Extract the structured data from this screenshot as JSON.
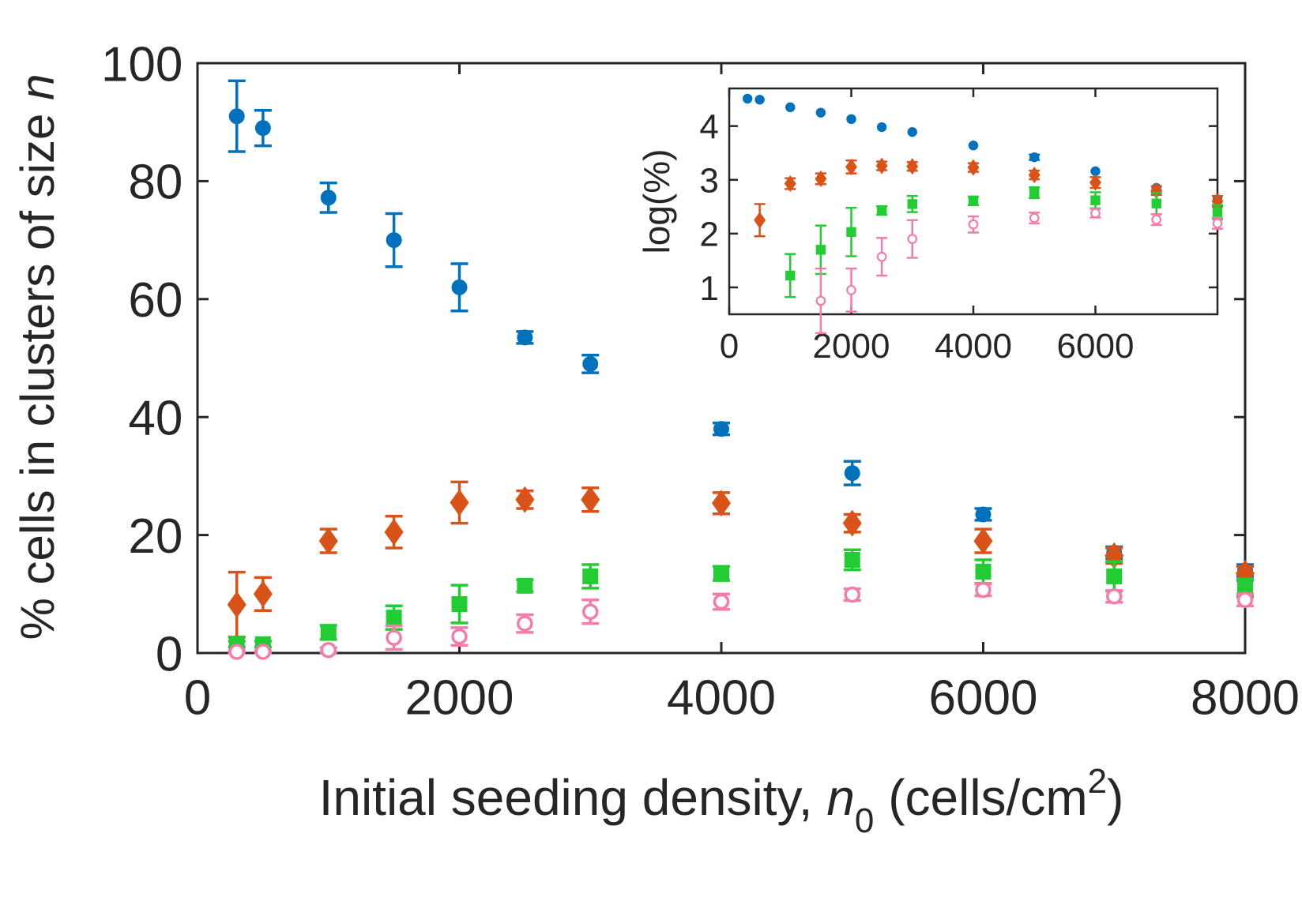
{
  "chart_data": [
    {
      "type": "scatter",
      "role": "main",
      "xlabel": {
        "text": "Initial seeding density, ",
        "var": "n",
        "sub": "0",
        "unit_open": " (cells/cm",
        "sup": "2",
        "unit_close": ")"
      },
      "ylabel": {
        "text": "% cells in clusters of size ",
        "var": "n"
      },
      "xlim": [
        0,
        8000
      ],
      "ylim": [
        0,
        100
      ],
      "xticks": [
        0,
        2000,
        4000,
        6000,
        8000
      ],
      "yticks": [
        0,
        20,
        40,
        60,
        80,
        100
      ],
      "grid": false,
      "series": [
        {
          "name": "blue-circles",
          "marker": "circle-filled",
          "color": "#0072BD",
          "x": [
            300,
            500,
            1000,
            1500,
            2000,
            2500,
            3000,
            4000,
            5000,
            6000,
            7000,
            8000
          ],
          "y": [
            91,
            89,
            77.2,
            70,
            62,
            53.5,
            49,
            38,
            30.5,
            23.5,
            17,
            14
          ],
          "err": [
            6,
            3,
            2.5,
            4.5,
            4,
            1,
            1.5,
            1,
            2,
            1,
            1,
            1
          ]
        },
        {
          "name": "orange-diamonds",
          "marker": "diamond-filled",
          "color": "#D95319",
          "x": [
            300,
            500,
            1000,
            1500,
            2000,
            2500,
            3000,
            4000,
            5000,
            6000,
            7000,
            8000
          ],
          "y": [
            8.2,
            10,
            19,
            20.5,
            25.5,
            26,
            26,
            25.4,
            22,
            19,
            16.5,
            13.5
          ],
          "err": [
            5.5,
            2.8,
            2,
            2.7,
            3.5,
            1.5,
            2,
            1.8,
            1.5,
            2,
            1.3,
            1.2
          ]
        },
        {
          "name": "green-squares",
          "marker": "square-filled",
          "color": "#22CC33",
          "x": [
            300,
            500,
            1000,
            1500,
            2000,
            2500,
            3000,
            4000,
            5000,
            6000,
            7000,
            8000
          ],
          "y": [
            1.5,
            1.5,
            3.5,
            6,
            8.3,
            11.4,
            13,
            13.5,
            15.8,
            13.8,
            13,
            11
          ],
          "err": [
            0.5,
            0.5,
            1.2,
            2,
            3.2,
            1,
            2,
            1.2,
            1.7,
            2,
            2.5,
            1.5
          ]
        },
        {
          "name": "pink-circles",
          "marker": "circle-open",
          "color": "#F27DAA",
          "x": [
            300,
            500,
            1000,
            1500,
            2000,
            2500,
            3000,
            4000,
            5000,
            6000,
            7000,
            8000
          ],
          "y": [
            0.2,
            0.2,
            0.5,
            2.6,
            2.8,
            5,
            7,
            8.7,
            9.9,
            10.7,
            9.6,
            9
          ],
          "err": [
            0.2,
            0.2,
            0.4,
            2,
            1.5,
            1.5,
            2,
            1.3,
            1,
            1,
            1,
            1
          ]
        }
      ]
    },
    {
      "type": "scatter",
      "role": "inset",
      "xlabel": "",
      "ylabel": "log(%)",
      "xlim": [
        0,
        8000
      ],
      "ylim": [
        0.5,
        4.7
      ],
      "xticks": [
        0,
        2000,
        4000,
        6000
      ],
      "yticks": [
        1,
        2,
        3,
        4
      ],
      "grid": false,
      "series": [
        {
          "name": "blue-circles",
          "marker": "circle-filled",
          "color": "#0072BD",
          "x": [
            300,
            500,
            1000,
            1500,
            2000,
            2500,
            3000,
            4000,
            5000,
            6000,
            7000,
            8000
          ],
          "y": [
            4.51,
            4.49,
            4.35,
            4.25,
            4.13,
            3.98,
            3.89,
            3.64,
            3.42,
            3.16,
            2.85,
            2.64
          ],
          "err": [
            0,
            0,
            0,
            0,
            0,
            0,
            0,
            0,
            0.05,
            0,
            0,
            0
          ]
        },
        {
          "name": "orange-diamonds",
          "marker": "diamond-filled",
          "color": "#D95319",
          "x": [
            500,
            1000,
            1500,
            2000,
            2500,
            3000,
            4000,
            5000,
            6000,
            7000,
            8000
          ],
          "y": [
            2.25,
            2.93,
            3.02,
            3.24,
            3.26,
            3.25,
            3.23,
            3.09,
            2.95,
            2.8,
            2.6
          ],
          "err": [
            0.3,
            0.1,
            0.1,
            0.12,
            0.08,
            0.08,
            0.08,
            0.08,
            0.1,
            0.08,
            0.1
          ]
        },
        {
          "name": "green-squares",
          "marker": "square-filled",
          "color": "#22CC33",
          "x": [
            1000,
            1500,
            2000,
            2500,
            3000,
            4000,
            5000,
            6000,
            7000,
            8000
          ],
          "y": [
            1.22,
            1.7,
            2.03,
            2.43,
            2.55,
            2.61,
            2.76,
            2.62,
            2.56,
            2.4
          ],
          "err": [
            0.4,
            0.45,
            0.45,
            0.08,
            0.15,
            0.08,
            0.1,
            0.15,
            0.2,
            0.13
          ]
        },
        {
          "name": "pink-circles",
          "marker": "circle-open",
          "color": "#F27DAA",
          "x": [
            1500,
            2000,
            2500,
            3000,
            4000,
            5000,
            6000,
            7000,
            8000
          ],
          "y": [
            0.75,
            0.95,
            1.57,
            1.9,
            2.17,
            2.29,
            2.38,
            2.26,
            2.19
          ],
          "err": [
            0.6,
            0.4,
            0.35,
            0.35,
            0.15,
            0.1,
            0.08,
            0.1,
            0.1
          ]
        }
      ]
    }
  ]
}
